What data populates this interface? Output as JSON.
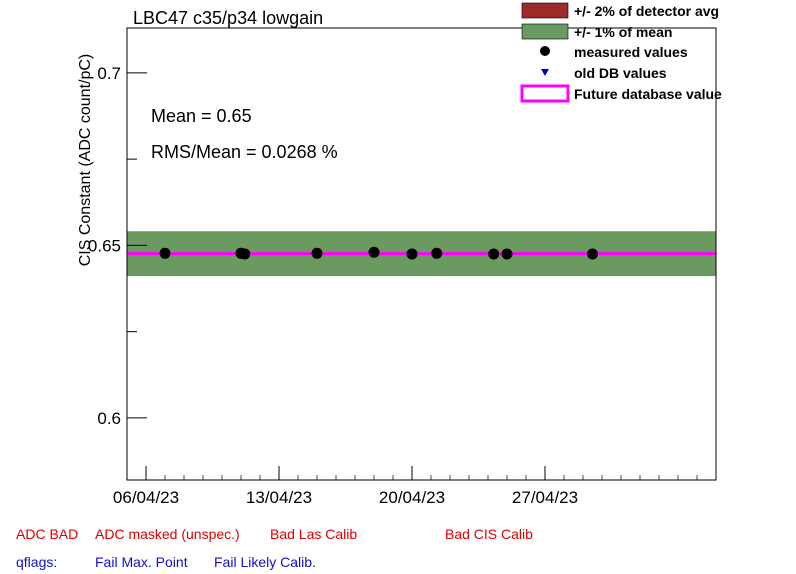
{
  "chart_data": {
    "type": "scatter",
    "title": "LBC47 c35/p34 lowgain",
    "xlabel": "",
    "ylabel": "CIS Constant (ADC count/pC)",
    "ylim": [
      0.582,
      0.713
    ],
    "xlim": [
      "2023-04-05",
      "2023-05-06"
    ],
    "y_ticks": [
      0.6,
      0.65,
      0.7
    ],
    "y_tick_labels": [
      "0.6",
      "0.65",
      "0.7"
    ],
    "x_ticks": [
      "2023-04-06",
      "2023-04-13",
      "2023-04-20",
      "2023-04-27"
    ],
    "x_tick_labels": [
      "06/04/23",
      "13/04/23",
      "20/04/23",
      "27/04/23"
    ],
    "mean_label": "Mean = 0.65",
    "rms_label": "RMS/Mean = 0.0268 %",
    "mean": 0.6476,
    "band_1pct": [
      0.6411,
      0.6541
    ],
    "future_value": 0.6476,
    "measured": [
      {
        "x": "2023-04-07",
        "y": 0.6477
      },
      {
        "x": "2023-04-11",
        "y": 0.6477
      },
      {
        "x": "2023-04-11.2",
        "y": 0.6475
      },
      {
        "x": "2023-04-15",
        "y": 0.6477
      },
      {
        "x": "2023-04-18",
        "y": 0.648
      },
      {
        "x": "2023-04-20",
        "y": 0.6475
      },
      {
        "x": "2023-04-21.3",
        "y": 0.6477
      },
      {
        "x": "2023-04-24.3",
        "y": 0.6475
      },
      {
        "x": "2023-04-25",
        "y": 0.6475
      },
      {
        "x": "2023-04-29.5",
        "y": 0.6475
      }
    ],
    "legend": {
      "placement": "top-right",
      "entries": [
        {
          "label": "+/- 2% of detector avg",
          "color": "#9e2a2a"
        },
        {
          "label": "+/- 1% of mean",
          "color": "#6a9a60"
        },
        {
          "label": "measured values",
          "color": "#000000"
        },
        {
          "label": "old DB values",
          "color": "#0000cc"
        },
        {
          "label": "Future database value",
          "color": "#ff00ff"
        }
      ]
    }
  },
  "flags": {
    "adc_bad": "ADC BAD",
    "adc_masked": "ADC masked (unspec.)",
    "bad_las": "Bad Las Calib",
    "bad_cis": "Bad CIS Calib",
    "qflags": "qflags:",
    "fail_max": "Fail Max. Point",
    "fail_likely": "Fail Likely Calib."
  }
}
